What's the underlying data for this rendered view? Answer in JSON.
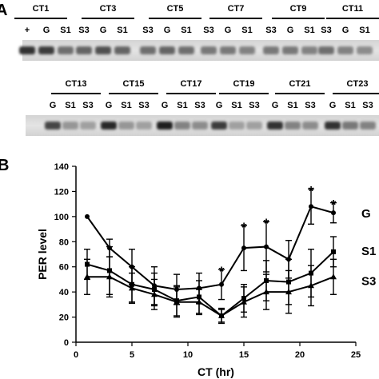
{
  "figure": {
    "panel_a_label": "A",
    "panel_b_label": "B"
  },
  "blot_rows": [
    {
      "groups": [
        {
          "ct": "CT1",
          "lanes": [
            "+",
            "G",
            "S1"
          ]
        },
        {
          "ct": "CT3",
          "lanes": [
            "S3",
            "G",
            "S1"
          ]
        },
        {
          "ct": "CT5",
          "lanes": [
            "S3",
            "G",
            "S1"
          ]
        },
        {
          "ct": "CT7",
          "lanes": [
            "S3",
            "G",
            "S1"
          ]
        },
        {
          "ct": "CT9",
          "lanes": [
            "S3",
            "G",
            "S1"
          ]
        },
        {
          "ct": "CT11",
          "lanes": [
            "S3",
            "G",
            "S1",
            "S3"
          ]
        }
      ],
      "band_intensity": [
        0.85,
        0.8,
        0.55,
        0.6,
        0.7,
        0.6,
        0.55,
        0.6,
        0.55,
        0.5,
        0.5,
        0.45,
        0.5,
        0.5,
        0.45,
        0.55,
        0.45,
        0.4,
        0.4
      ]
    },
    {
      "groups": [
        {
          "ct": "CT13",
          "lanes": [
            "G",
            "S1",
            "S3"
          ]
        },
        {
          "ct": "CT15",
          "lanes": [
            "G",
            "S1",
            "S3"
          ]
        },
        {
          "ct": "CT17",
          "lanes": [
            "G",
            "S1",
            "S3"
          ]
        },
        {
          "ct": "CT19",
          "lanes": [
            "G",
            "S1",
            "S3"
          ]
        },
        {
          "ct": "CT21",
          "lanes": [
            "G",
            "S1",
            "S3"
          ]
        },
        {
          "ct": "CT23",
          "lanes": [
            "G",
            "S1",
            "S3"
          ]
        }
      ],
      "band_intensity": [
        0.75,
        0.35,
        0.3,
        0.9,
        0.35,
        0.3,
        0.95,
        0.45,
        0.4,
        0.8,
        0.3,
        0.3,
        0.85,
        0.45,
        0.4,
        0.85,
        0.5,
        0.45
      ]
    }
  ],
  "chart_data": {
    "type": "line",
    "xlabel": "CT (hr)",
    "ylabel": "PER level",
    "xlim": [
      0,
      25
    ],
    "ylim": [
      0,
      140
    ],
    "xticks": [
      0,
      5,
      10,
      15,
      20,
      25
    ],
    "yticks": [
      0,
      20,
      40,
      60,
      80,
      100,
      120,
      140
    ],
    "grid": false,
    "x": [
      1,
      3,
      5,
      7,
      9,
      11,
      13,
      15,
      17,
      19,
      21,
      23
    ],
    "series": [
      {
        "name": "G",
        "marker": "circle",
        "values": [
          100,
          75,
          60,
          45,
          42,
          43,
          46,
          75,
          76,
          66,
          108,
          103
        ],
        "errors": [
          0,
          7,
          14,
          15,
          12,
          12,
          12,
          18,
          20,
          15,
          14,
          8
        ]
      },
      {
        "name": "S1",
        "marker": "square",
        "values": [
          62,
          57,
          46,
          42,
          33,
          36,
          21,
          35,
          49,
          48,
          55,
          72
        ],
        "errors": [
          12,
          19,
          14,
          13,
          12,
          13,
          5,
          11,
          16,
          18,
          19,
          12
        ]
      },
      {
        "name": "S3",
        "marker": "triangle",
        "values": [
          52,
          52,
          43,
          38,
          32,
          32,
          21,
          32,
          40,
          40,
          45,
          52
        ],
        "errors": [
          14,
          16,
          12,
          12,
          12,
          10,
          6,
          12,
          14,
          17,
          16,
          14
        ]
      }
    ],
    "annotations": [
      {
        "text": "*",
        "x": 13,
        "y": 58
      },
      {
        "text": "*",
        "x": 15,
        "y": 93
      },
      {
        "text": "*",
        "x": 17,
        "y": 96
      },
      {
        "text": "*",
        "x": 21,
        "y": 122
      },
      {
        "text": "*",
        "x": 23,
        "y": 111
      }
    ]
  }
}
